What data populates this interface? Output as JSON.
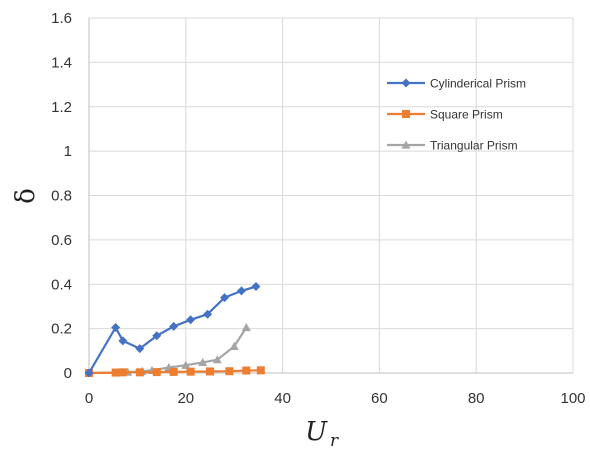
{
  "chart_data": {
    "type": "line",
    "title": "",
    "xlabel": "U",
    "xlabel_subscript": "r",
    "ylabel": "δ",
    "xlim": [
      0,
      100
    ],
    "ylim": [
      0,
      1.6
    ],
    "xticks": [
      "0",
      "20",
      "40",
      "60",
      "80",
      "100"
    ],
    "yticks": [
      "0",
      "0.2",
      "0.4",
      "0.6",
      "0.8",
      "1",
      "1.2",
      "1.4",
      "1.6"
    ],
    "grid": true,
    "legend_position": "right",
    "series": [
      {
        "name": "Cylinderical Prism",
        "color": "#4472C4",
        "marker": "diamond",
        "points": [
          [
            0,
            0
          ],
          [
            5.5,
            0.205
          ],
          [
            7,
            0.145
          ],
          [
            10.5,
            0.11
          ],
          [
            14,
            0.168
          ],
          [
            17.5,
            0.21
          ],
          [
            21,
            0.24
          ],
          [
            24.5,
            0.265
          ],
          [
            28,
            0.34
          ],
          [
            31.5,
            0.37
          ],
          [
            34.5,
            0.39
          ]
        ]
      },
      {
        "name": "Square Prism",
        "color": "#ED7D31",
        "marker": "square",
        "points": [
          [
            0,
            0
          ],
          [
            5.5,
            0.002
          ],
          [
            7,
            0.003
          ],
          [
            10.5,
            0.003
          ],
          [
            14,
            0.004
          ],
          [
            17.5,
            0.005
          ],
          [
            21,
            0.006
          ],
          [
            25,
            0.007
          ],
          [
            29,
            0.008
          ],
          [
            32.5,
            0.011
          ],
          [
            35.5,
            0.012
          ]
        ]
      },
      {
        "name": "Triangular Prism",
        "color": "#A5A5A5",
        "marker": "triangle",
        "points": [
          [
            0,
            0
          ],
          [
            6,
            0.002
          ],
          [
            8,
            0.004
          ],
          [
            11,
            0.008
          ],
          [
            13,
            0.012
          ],
          [
            16.5,
            0.025
          ],
          [
            20,
            0.035
          ],
          [
            23.5,
            0.048
          ],
          [
            26.5,
            0.06
          ],
          [
            30,
            0.12
          ],
          [
            32.5,
            0.205
          ]
        ]
      }
    ]
  }
}
